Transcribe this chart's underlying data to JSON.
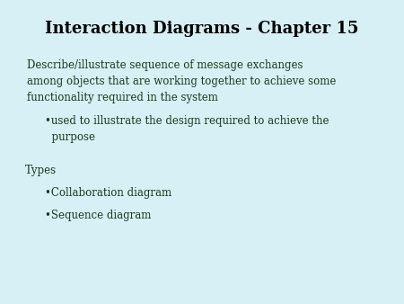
{
  "title": "Interaction Diagrams - Chapter 15",
  "background_color": "#d6f0f5",
  "title_fontsize": 13,
  "title_fontweight": "bold",
  "title_color": "#000000",
  "body_text_color": "#1a3a1a",
  "body_fontsize": 8.5,
  "main_paragraph": "Describe/illustrate sequence of message exchanges\namong objects that are working together to achieve some\nfunctionality required in the system",
  "bullet1": "•used to illustrate the design required to achieve the\n  purpose",
  "types_label": "Types",
  "bullet2": "•Collaboration diagram",
  "bullet3": "•Sequence diagram"
}
